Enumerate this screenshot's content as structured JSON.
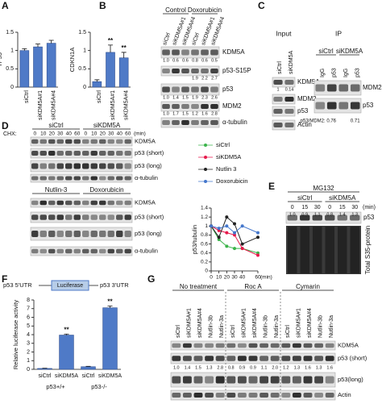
{
  "panel_letters": [
    "A",
    "B",
    "C",
    "D",
    "E",
    "F",
    "G"
  ],
  "chart_data": [
    {
      "type": "bar",
      "ylabel": "TP53",
      "categories": [
        "siCtrl",
        "siKDM5A#1",
        "siKDM5A#4"
      ],
      "values": [
        1.0,
        1.1,
        1.2
      ],
      "errors": [
        0.05,
        0.08,
        0.08
      ],
      "annotations": [
        null,
        null,
        null
      ],
      "color": "#4f7ac7",
      "ylim": [
        0,
        1.5
      ],
      "yticks": [
        0,
        0.5,
        1,
        1.5
      ]
    },
    {
      "type": "bar",
      "ylabel": "CDKN1A",
      "categories": [
        "siCtrl",
        "siKDM5A#1",
        "siKDM5A#4"
      ],
      "values": [
        0.15,
        0.95,
        0.8
      ],
      "errors": [
        0.05,
        0.2,
        0.15
      ],
      "annotations": [
        null,
        "**",
        "**"
      ],
      "color": "#4f7ac7",
      "ylim": [
        0,
        1.5
      ],
      "yticks": [
        0,
        0.5,
        1,
        1.5
      ]
    },
    {
      "type": "line",
      "ylabel": "p53/tubulin",
      "xlabel": "(min)",
      "x": [
        0,
        10,
        20,
        30,
        40,
        60
      ],
      "xlim": [
        0,
        60
      ],
      "xticks": [
        0,
        10,
        20,
        30,
        40,
        60
      ],
      "ylim": [
        0,
        1.4
      ],
      "yticks": [
        0,
        0.2,
        0.4,
        0.6,
        0.8,
        1,
        1.2,
        1.4
      ],
      "legend": "top",
      "series": [
        {
          "name": "siCtrl",
          "color": "#3cb44b",
          "values": [
            1.0,
            0.7,
            0.55,
            0.5,
            0.5,
            0.4
          ]
        },
        {
          "name": "siKDM5A",
          "color": "#e6194b",
          "values": [
            1.0,
            0.9,
            0.85,
            0.8,
            0.5,
            0.35
          ]
        },
        {
          "name": "Nutlin 3",
          "color": "#222222",
          "values": [
            1.0,
            0.75,
            1.2,
            1.05,
            0.6,
            0.75
          ]
        },
        {
          "name": "Doxorubicin",
          "color": "#4477cc",
          "values": [
            1.0,
            0.95,
            1.0,
            0.85,
            1.0,
            0.85
          ]
        }
      ]
    },
    {
      "type": "bar",
      "ylabel": "Relative luciferase activity",
      "categories": [
        "siCtrl",
        "siKDM5A",
        "siCtrl",
        "siKDM5A"
      ],
      "groups": [
        "p53+/+",
        "p53-/-"
      ],
      "values": [
        0.1,
        3.95,
        0.3,
        7.1
      ],
      "errors": [
        0.03,
        0.12,
        0.05,
        0.2
      ],
      "annotations": [
        null,
        "**",
        null,
        "**"
      ],
      "color": "#4f7ac7",
      "ylim": [
        0,
        8
      ],
      "yticks": [
        0,
        1,
        2,
        3,
        4,
        5,
        6,
        7,
        8
      ],
      "construct": {
        "left": "p53 5'UTR",
        "box": "Luciferase",
        "right": "p53 3'UTR"
      }
    }
  ],
  "panel_b": {
    "groups": [
      "Control",
      "Doxorubicin"
    ],
    "lanes": [
      "siCtrl",
      "siKDM5A#1",
      "siKDM5A#4",
      "siCtrl",
      "siKDM5A#1",
      "siKDM5A#4"
    ],
    "rows": [
      "KDM5A",
      "p53-S15P",
      "p53",
      "MDM2",
      "α-tubulin"
    ],
    "quant": [
      [
        "1.0",
        "0.6",
        "0.6",
        "0.8",
        "0.6",
        "0.5"
      ],
      [
        null,
        null,
        null,
        "1.9",
        "2.2",
        "2.7"
      ],
      [
        "1.0",
        "1.4",
        "1.5",
        "1.9",
        "2.3",
        "2.6"
      ],
      [
        "1.0",
        "1.7",
        "1.5",
        "1.2",
        "1.6",
        "2.8"
      ],
      null
    ]
  },
  "panel_c": {
    "input": {
      "title": "Input",
      "lanes": [
        "siCtrl",
        "siKDM5A"
      ],
      "rows": [
        "KDM5A",
        "MDM2",
        "p53",
        "Actin"
      ],
      "quant": [
        [
          "1",
          "0.14"
        ],
        null,
        null,
        null
      ]
    },
    "ip": {
      "title": "IP",
      "groups": [
        "siCtrl",
        "siKDM5A"
      ],
      "lanes": [
        "IgG",
        "p53",
        "IgG",
        "p53"
      ],
      "rows": [
        "MDM2",
        "p53"
      ],
      "ratio_1": "p53/MDM2: 0.76",
      "ratio_2": "0.71"
    }
  },
  "panel_d": {
    "groups_top": [
      "siCtrl",
      "siKDM5A"
    ],
    "chx": "CHX:",
    "times": [
      "0",
      "10",
      "20",
      "30",
      "40",
      "60",
      "0",
      "10",
      "20",
      "30",
      "40",
      "60"
    ],
    "unit": "(min)",
    "rows_top": [
      "KDM5A",
      "p53 (short)",
      "p53 (long)",
      "α-tubulin"
    ],
    "groups_bottom": [
      "Nutlin-3",
      "Doxorubicin"
    ],
    "rows_bottom": [
      "KDM5A",
      "p53 (short)",
      "p53 (long)",
      "α-tubulin"
    ]
  },
  "panel_e": {
    "title": "MG132",
    "groups": [
      "siCtrl",
      "siKDM5A"
    ],
    "times": [
      "0",
      "15",
      "30",
      "0",
      "15",
      "30"
    ],
    "unit": "(min)",
    "quant": [
      "1.0",
      "0.9",
      "1.1",
      "0.8",
      "1.4",
      "1.3"
    ],
    "row": "p53",
    "total": "Total S35-protein"
  },
  "panel_g": {
    "groups": [
      "No treatment",
      "Roc A",
      "Cymarin"
    ],
    "lanes": [
      "siCtrl",
      "siKDM5A#1",
      "siKDM5A#4",
      "Nutlin-3b",
      "Nutlin-3a",
      "siCtrl",
      "siKDM5A#1",
      "siKDM5A#4",
      "Nutlin-3b",
      "Nutlin-3a",
      "siCtrl",
      "siKDM5A#1",
      "siKDM5A#4",
      "Nutlin-3b",
      "Nutlin-3a"
    ],
    "rows": [
      "KDM5A",
      "p53 (short)",
      "p53(long)",
      "Actin"
    ],
    "quant": [
      "1.0",
      "1.4",
      "1.5",
      "1.3",
      "2.8",
      "0.8",
      "0.9",
      "0.9",
      "1.1",
      "2.0",
      "1.2",
      "1.3",
      "1.6",
      "1.3",
      "1.6"
    ]
  }
}
